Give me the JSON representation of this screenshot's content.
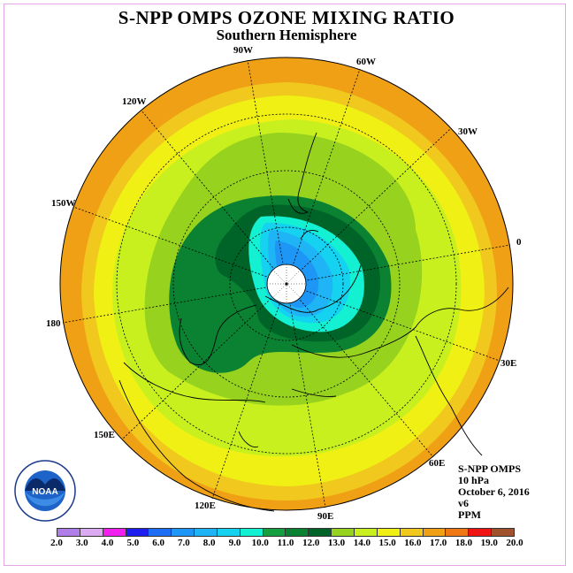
{
  "title": "S-NPP OMPS OZONE MIXING RATIO",
  "subtitle": "Southern Hemisphere",
  "longitude_labels": [
    {
      "text": "90W",
      "id": "90w"
    },
    {
      "text": "60W",
      "id": "60w"
    },
    {
      "text": "120W",
      "id": "120w"
    },
    {
      "text": "30W",
      "id": "30w"
    },
    {
      "text": "150W",
      "id": "150w"
    },
    {
      "text": "0",
      "id": "0"
    },
    {
      "text": "180",
      "id": "180"
    },
    {
      "text": "30E",
      "id": "30e"
    },
    {
      "text": "150E",
      "id": "150e"
    },
    {
      "text": "60E",
      "id": "60e"
    },
    {
      "text": "120E",
      "id": "120e"
    },
    {
      "text": "90E",
      "id": "90e"
    }
  ],
  "info": {
    "instrument": "S-NPP OMPS",
    "level": "10 hPa",
    "date": "October 6, 2016",
    "version": "v6",
    "units": "PPM"
  },
  "logo": {
    "text": "NOAA",
    "icon": "noaa-logo-icon"
  },
  "colorbar": {
    "ticks": [
      "2.0",
      "3.0",
      "4.0",
      "5.0",
      "6.0",
      "7.0",
      "8.0",
      "9.0",
      "10.0",
      "11.0",
      "12.0",
      "13.0",
      "14.0",
      "15.0",
      "16.0",
      "17.0",
      "18.0",
      "19.0",
      "20.0"
    ],
    "colors": [
      "#b07ee8",
      "#dcaaf2",
      "#f020f0",
      "#1e1ef0",
      "#1e6ef5",
      "#1e96f5",
      "#1eb4f5",
      "#14d2f0",
      "#14f0d2",
      "#14a040",
      "#0a8232",
      "#006428",
      "#96d21e",
      "#c8f01e",
      "#f0f014",
      "#f0c81e",
      "#f0a014",
      "#f07814",
      "#f01414",
      "#a0522d"
    ]
  },
  "zones": {
    "outer": "#f0a014",
    "band_16": "#f0c81e",
    "band_15": "#f0f014",
    "band_14": "#c8f01e",
    "band_13": "#96d21e",
    "band_12": "#0a8232",
    "band_11": "#006428",
    "band_10": "#14f0d2",
    "band_9": "#14d2f0",
    "band_8": "#1eb4f5",
    "band_7": "#1e96f5"
  }
}
